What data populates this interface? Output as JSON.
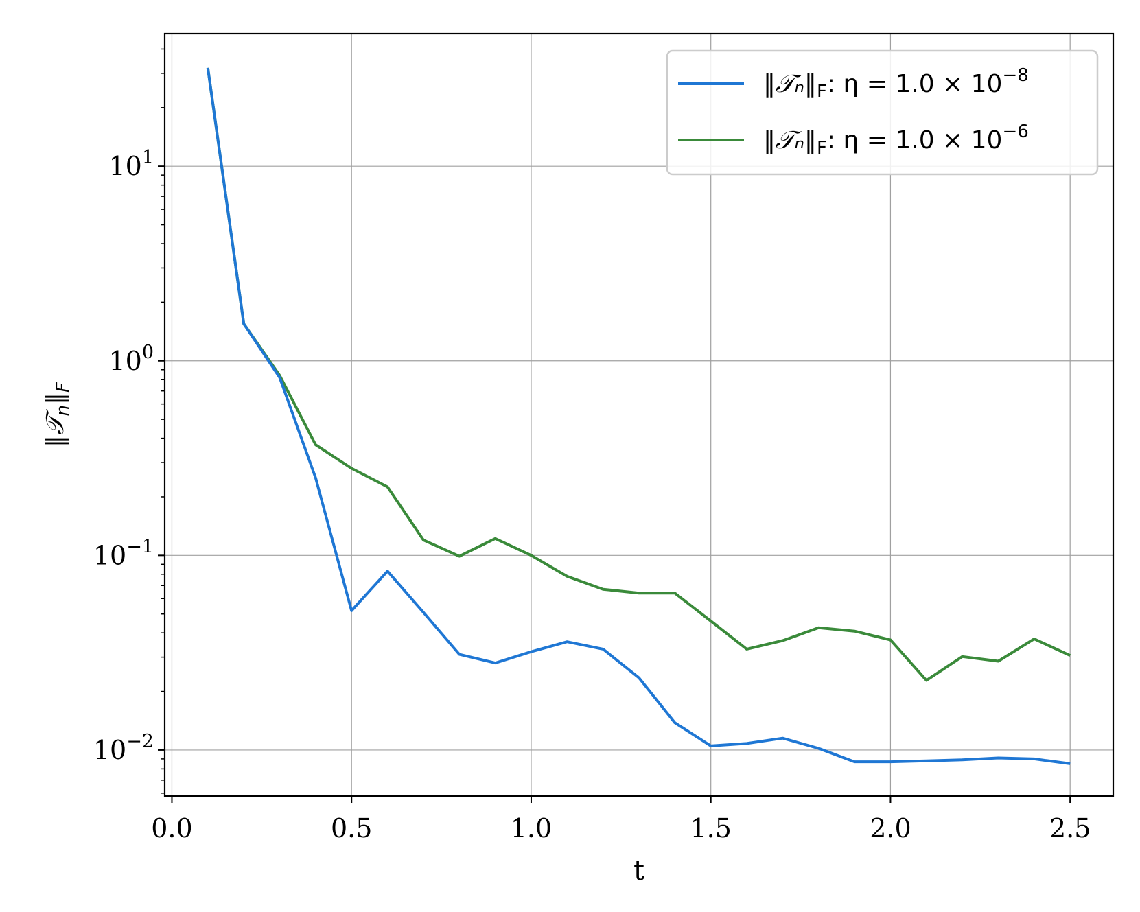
{
  "chart_data": {
    "type": "line",
    "title": "",
    "xlabel": "t",
    "ylabel": "‖𝒯ₙ‖_F",
    "ylabel_parts": {
      "norm_open": "‖",
      "symbol": "𝒯",
      "sub_n": "n",
      "norm_close": "‖",
      "sub_F": "F"
    },
    "yscale": "log",
    "xlim": [
      -0.02,
      2.62
    ],
    "ylim": [
      0.0058,
      48
    ],
    "grid": true,
    "legend_position": "top-right",
    "x_ticks": [
      {
        "value": 0.0,
        "label": "0.0"
      },
      {
        "value": 0.5,
        "label": "0.5"
      },
      {
        "value": 1.0,
        "label": "1.0"
      },
      {
        "value": 1.5,
        "label": "1.5"
      },
      {
        "value": 2.0,
        "label": "2.0"
      },
      {
        "value": 2.5,
        "label": "2.5"
      }
    ],
    "y_ticks": [
      {
        "value": 0.01,
        "base": "10",
        "exp": "−2"
      },
      {
        "value": 0.1,
        "base": "10",
        "exp": "−1"
      },
      {
        "value": 1,
        "base": "10",
        "exp": "0"
      },
      {
        "value": 10,
        "base": "10",
        "exp": "1"
      }
    ],
    "x": [
      0.1,
      0.2,
      0.3,
      0.4,
      0.5,
      0.6,
      0.7,
      0.8,
      0.9,
      1.0,
      1.1,
      1.2,
      1.3,
      1.4,
      1.5,
      1.6,
      1.7,
      1.8,
      1.9,
      2.0,
      2.1,
      2.2,
      2.3,
      2.4,
      2.5
    ],
    "series": [
      {
        "legend_prefix": "‖𝒯ₙ‖",
        "legend_sub": "F",
        "legend_eq": ": η = 1.0 × 10",
        "legend_exp": "−8",
        "color": "#1f77d4",
        "values": [
          32,
          1.55,
          0.82,
          0.25,
          0.052,
          0.083,
          0.051,
          0.031,
          0.028,
          0.032,
          0.036,
          0.033,
          0.0235,
          0.0138,
          0.0105,
          0.0108,
          0.0115,
          0.0102,
          0.0087,
          0.0087,
          0.0088,
          0.0089,
          0.0091,
          0.009,
          0.0085
        ]
      },
      {
        "legend_prefix": "‖𝒯ₙ‖",
        "legend_sub": "F",
        "legend_eq": ": η = 1.0 × 10",
        "legend_exp": "−6",
        "color": "#3a8a3a",
        "values": [
          32,
          1.55,
          0.84,
          0.37,
          0.28,
          0.225,
          0.12,
          0.099,
          0.122,
          0.1,
          0.078,
          0.067,
          0.064,
          0.064,
          0.046,
          0.033,
          0.0365,
          0.0425,
          0.0408,
          0.0368,
          0.0228,
          0.0302,
          0.0286,
          0.0372,
          0.0306
        ]
      }
    ]
  }
}
